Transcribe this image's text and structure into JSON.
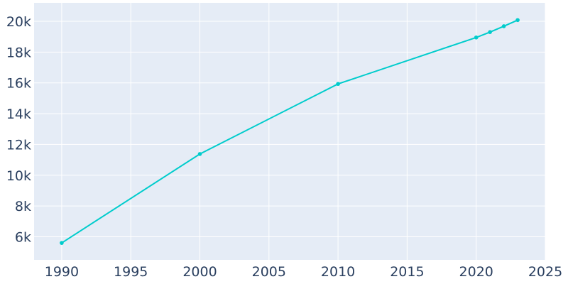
{
  "chart_data": {
    "type": "line",
    "title": "",
    "xlabel": "",
    "ylabel": "",
    "xlim": [
      1988,
      2025
    ],
    "ylim": [
      4500,
      21200
    ],
    "x_ticks": [
      1990,
      1995,
      2000,
      2005,
      2010,
      2015,
      2020,
      2025
    ],
    "x_tick_labels": [
      "1990",
      "1995",
      "2000",
      "2005",
      "2010",
      "2015",
      "2020",
      "2025"
    ],
    "y_ticks": [
      6000,
      8000,
      10000,
      12000,
      14000,
      16000,
      18000,
      20000
    ],
    "y_tick_labels": [
      "6k",
      "8k",
      "10k",
      "12k",
      "14k",
      "16k",
      "18k",
      "20k"
    ],
    "grid": true,
    "series": [
      {
        "color": "#00cccc",
        "x": [
          1990,
          2000,
          2010,
          2020,
          2021,
          2022,
          2023
        ],
        "y": [
          5600,
          11380,
          15930,
          18950,
          19300,
          19680,
          20080
        ]
      }
    ]
  }
}
